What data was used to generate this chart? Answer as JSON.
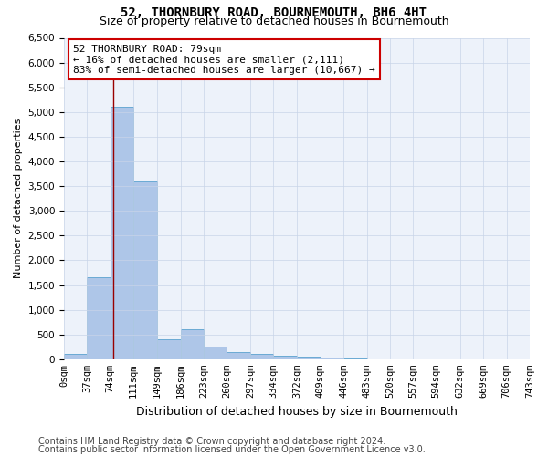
{
  "title": "52, THORNBURY ROAD, BOURNEMOUTH, BH6 4HT",
  "subtitle": "Size of property relative to detached houses in Bournemouth",
  "xlabel": "Distribution of detached houses by size in Bournemouth",
  "ylabel": "Number of detached properties",
  "footer1": "Contains HM Land Registry data © Crown copyright and database right 2024.",
  "footer2": "Contains public sector information licensed under the Open Government Licence v3.0.",
  "annotation_line1": "52 THORNBURY ROAD: 79sqm",
  "annotation_line2": "← 16% of detached houses are smaller (2,111)",
  "annotation_line3": "83% of semi-detached houses are larger (10,667) →",
  "bar_edges": [
    0,
    37,
    74,
    111,
    149,
    186,
    223,
    260,
    297,
    334,
    372,
    409,
    446,
    483,
    520,
    557,
    594,
    632,
    669,
    706,
    743
  ],
  "bar_heights": [
    100,
    1650,
    5100,
    3600,
    400,
    600,
    250,
    150,
    100,
    75,
    50,
    30,
    20,
    0,
    0,
    0,
    0,
    0,
    0,
    0
  ],
  "bar_color": "#aec6e8",
  "bar_edge_color": "#6aaad4",
  "vline_x": 79,
  "vline_color": "#990000",
  "ylim": [
    0,
    6500
  ],
  "yticks": [
    0,
    500,
    1000,
    1500,
    2000,
    2500,
    3000,
    3500,
    4000,
    4500,
    5000,
    5500,
    6000,
    6500
  ],
  "grid_color": "#c8d4e8",
  "background_color": "#edf2fa",
  "annotation_box_color": "#ffffff",
  "annotation_box_edge": "#cc0000",
  "title_fontsize": 10,
  "subtitle_fontsize": 9,
  "xlabel_fontsize": 9,
  "ylabel_fontsize": 8,
  "tick_fontsize": 7.5,
  "annotation_fontsize": 8,
  "footer_fontsize": 7
}
